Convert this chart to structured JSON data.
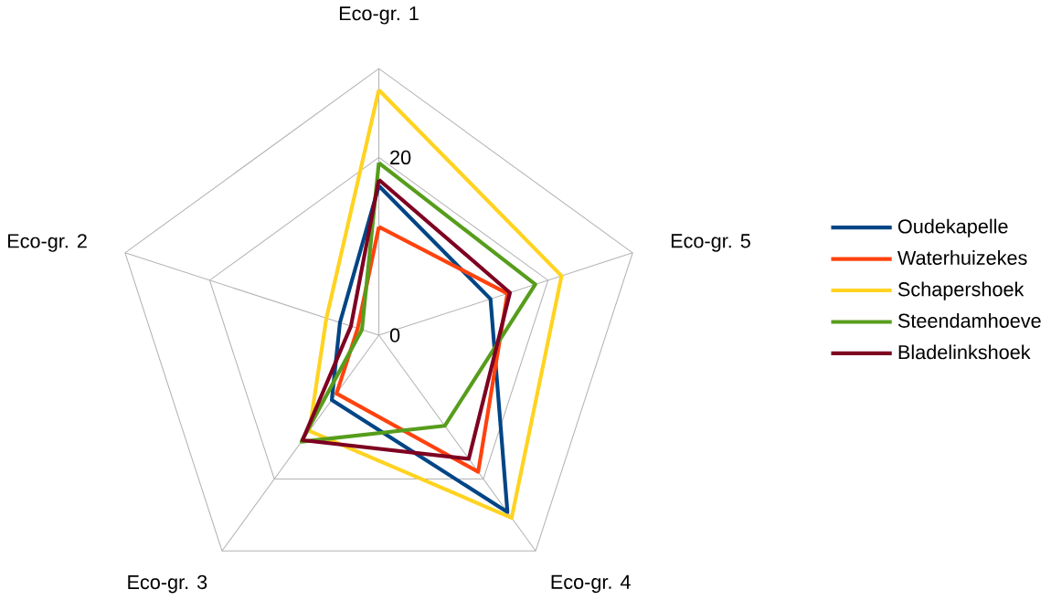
{
  "chart_data": {
    "type": "radar",
    "categories": [
      "Eco-gr. 1",
      "Eco-gr. 5",
      "Eco-gr. 4",
      "Eco-gr. 3",
      "Eco-gr. 2"
    ],
    "ylim": [
      0,
      30
    ],
    "yticks": [
      0,
      20
    ],
    "grid": true,
    "legend": "right",
    "series": [
      {
        "name": "Oudekapelle",
        "color": "#004586",
        "values": [
          16.8,
          13.2,
          24.6,
          9.0,
          4.6
        ]
      },
      {
        "name": "Waterhuizekes",
        "color": "#ff420e",
        "values": [
          12.2,
          15.2,
          19.0,
          8.1,
          2.5
        ]
      },
      {
        "name": "Schapershoek",
        "color": "#ffd320",
        "values": [
          27.6,
          21.6,
          25.4,
          13.3,
          6.2
        ]
      },
      {
        "name": "Steendamhoeve",
        "color": "#579d1c",
        "values": [
          19.4,
          18.5,
          12.6,
          14.8,
          2.0
        ]
      },
      {
        "name": "Bladelinkshoek",
        "color": "#7e0021",
        "values": [
          17.5,
          15.5,
          17.2,
          14.6,
          3.3
        ]
      }
    ]
  }
}
